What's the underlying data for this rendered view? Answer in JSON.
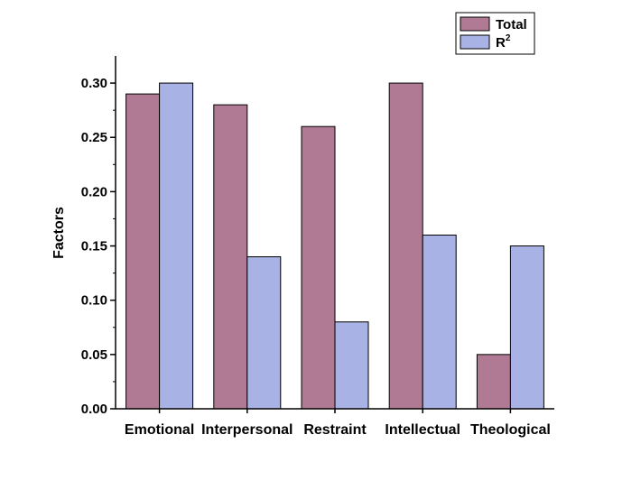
{
  "chart_data": {
    "type": "bar",
    "title": "",
    "xlabel": "",
    "ylabel": "Factors",
    "ylim": [
      0,
      0.325
    ],
    "yticks": [
      "0.00",
      "0.05",
      "0.10",
      "0.15",
      "0.20",
      "0.25",
      "0.30"
    ],
    "categories": [
      "Emotional",
      "Interpersonal",
      "Restraint",
      "Intellectual",
      "Theological"
    ],
    "series": [
      {
        "name": "Total",
        "values": [
          0.29,
          0.28,
          0.26,
          0.3,
          0.05
        ],
        "color": "#b07a94"
      },
      {
        "name": "R",
        "name_superscript": "2",
        "values": [
          0.3,
          0.14,
          0.08,
          0.16,
          0.15
        ],
        "color": "#a8b2e4"
      }
    ],
    "legend_position": "top-right",
    "grid": false
  }
}
